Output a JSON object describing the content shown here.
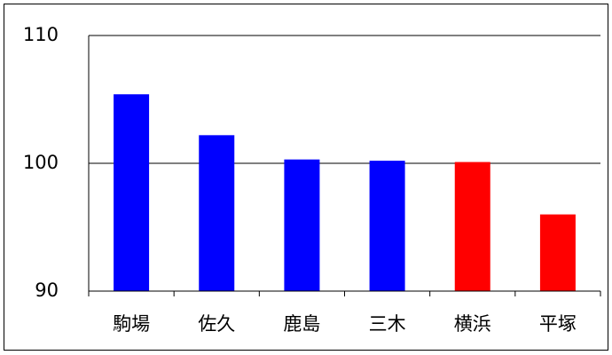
{
  "chart_data": {
    "type": "bar",
    "categories": [
      "駒場",
      "佐久",
      "鹿島",
      "三木",
      "横浜",
      "平塚"
    ],
    "values": [
      105.4,
      102.2,
      100.3,
      100.2,
      100.1,
      96.0
    ],
    "colors": [
      "#0000ff",
      "#0000ff",
      "#0000ff",
      "#0000ff",
      "#ff0000",
      "#ff0000"
    ],
    "ylim": [
      90,
      110
    ],
    "yticks": [
      90,
      100,
      110
    ],
    "grid": true
  }
}
